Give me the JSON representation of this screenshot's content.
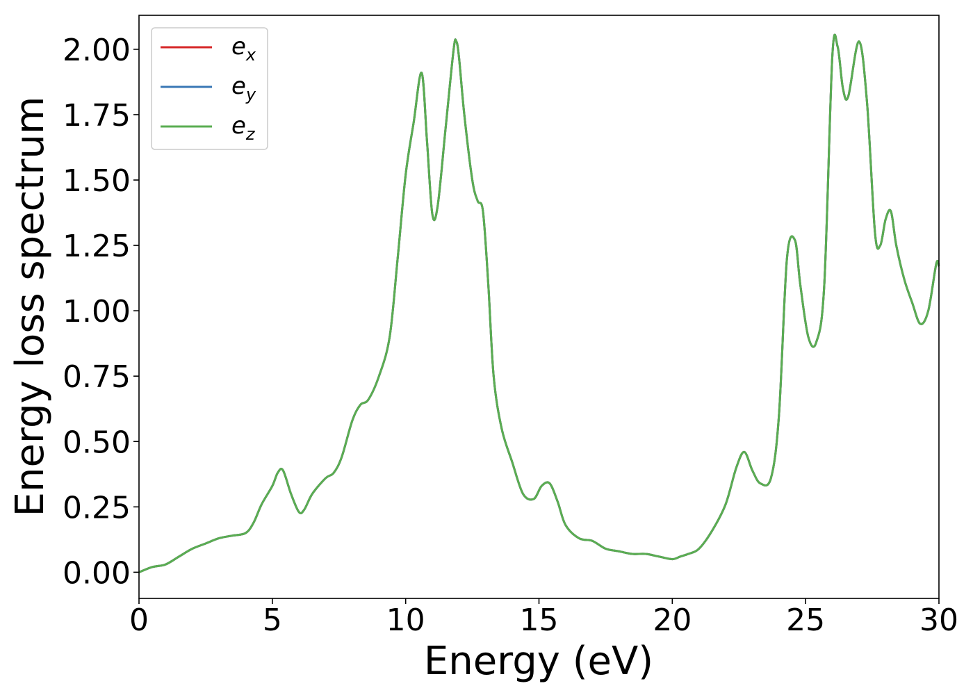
{
  "chart_data": {
    "type": "line",
    "title": "",
    "xlabel": "Energy (eV)",
    "ylabel": "Energy loss spectrum",
    "xlim": [
      0,
      30
    ],
    "ylim": [
      -0.1,
      2.13
    ],
    "xticks": [
      0,
      5,
      10,
      15,
      20,
      25,
      30
    ],
    "xtick_labels": [
      "0",
      "5",
      "10",
      "15",
      "20",
      "25",
      "30"
    ],
    "yticks": [
      0,
      0.25,
      0.5,
      0.75,
      1.0,
      1.25,
      1.5,
      1.75,
      2.0
    ],
    "ytick_labels": [
      "0.00",
      "0.25",
      "0.50",
      "0.75",
      "1.00",
      "1.25",
      "1.50",
      "1.75",
      "2.00"
    ],
    "grid": false,
    "legend_position": "top-left",
    "x": [
      0,
      0.5,
      1,
      1.5,
      2,
      2.5,
      3,
      3.5,
      4,
      4.3,
      4.6,
      5,
      5.2,
      5.4,
      5.7,
      6,
      6.2,
      6.5,
      7,
      7.3,
      7.6,
      8,
      8.3,
      8.6,
      9,
      9.4,
      9.7,
      10,
      10.3,
      10.6,
      10.8,
      11,
      11.2,
      11.5,
      11.8,
      11.9,
      12,
      12.2,
      12.5,
      12.7,
      12.9,
      13.1,
      13.3,
      13.6,
      14,
      14.4,
      14.8,
      15.1,
      15.4,
      15.7,
      16,
      16.5,
      17,
      17.5,
      18,
      18.5,
      19,
      19.5,
      20,
      20.3,
      20.6,
      21,
      21.5,
      22,
      22.4,
      22.7,
      23,
      23.3,
      23.7,
      24,
      24.3,
      24.6,
      24.8,
      25.1,
      25.4,
      25.7,
      26,
      26.2,
      26.4,
      26.6,
      27,
      27.3,
      27.6,
      27.8,
      28,
      28.2,
      28.4,
      28.7,
      29,
      29.3,
      29.6,
      29.9,
      30
    ],
    "series": [
      {
        "name": "e_x",
        "color": "#d62728",
        "values": [
          0.0,
          0.02,
          0.03,
          0.06,
          0.09,
          0.11,
          0.13,
          0.14,
          0.15,
          0.19,
          0.26,
          0.33,
          0.38,
          0.39,
          0.3,
          0.23,
          0.24,
          0.3,
          0.36,
          0.38,
          0.44,
          0.58,
          0.64,
          0.66,
          0.75,
          0.9,
          1.2,
          1.52,
          1.72,
          1.91,
          1.65,
          1.37,
          1.4,
          1.7,
          2.0,
          2.03,
          1.97,
          1.75,
          1.5,
          1.42,
          1.38,
          1.1,
          0.75,
          0.55,
          0.42,
          0.3,
          0.28,
          0.33,
          0.34,
          0.27,
          0.18,
          0.13,
          0.12,
          0.09,
          0.08,
          0.07,
          0.07,
          0.06,
          0.05,
          0.06,
          0.07,
          0.09,
          0.16,
          0.26,
          0.4,
          0.46,
          0.39,
          0.34,
          0.36,
          0.6,
          1.2,
          1.27,
          1.1,
          0.9,
          0.88,
          1.1,
          1.97,
          2.01,
          1.85,
          1.82,
          2.03,
          1.8,
          1.3,
          1.25,
          1.35,
          1.38,
          1.25,
          1.12,
          1.03,
          0.95,
          1.0,
          1.18,
          1.17
        ]
      },
      {
        "name": "e_y",
        "color": "#3a78b5",
        "values": [
          0.0,
          0.02,
          0.03,
          0.06,
          0.09,
          0.11,
          0.13,
          0.14,
          0.15,
          0.19,
          0.26,
          0.33,
          0.38,
          0.39,
          0.3,
          0.23,
          0.24,
          0.3,
          0.36,
          0.38,
          0.44,
          0.58,
          0.64,
          0.66,
          0.75,
          0.9,
          1.2,
          1.52,
          1.72,
          1.91,
          1.65,
          1.37,
          1.4,
          1.7,
          2.0,
          2.03,
          1.97,
          1.75,
          1.5,
          1.42,
          1.38,
          1.1,
          0.75,
          0.55,
          0.42,
          0.3,
          0.28,
          0.33,
          0.34,
          0.27,
          0.18,
          0.13,
          0.12,
          0.09,
          0.08,
          0.07,
          0.07,
          0.06,
          0.05,
          0.06,
          0.07,
          0.09,
          0.16,
          0.26,
          0.4,
          0.46,
          0.39,
          0.34,
          0.36,
          0.6,
          1.2,
          1.27,
          1.1,
          0.9,
          0.88,
          1.1,
          1.97,
          2.01,
          1.85,
          1.82,
          2.03,
          1.8,
          1.3,
          1.25,
          1.35,
          1.38,
          1.25,
          1.12,
          1.03,
          0.95,
          1.0,
          1.18,
          1.17
        ]
      },
      {
        "name": "e_z",
        "color": "#5aad52",
        "values": [
          0.0,
          0.02,
          0.03,
          0.06,
          0.09,
          0.11,
          0.13,
          0.14,
          0.15,
          0.19,
          0.26,
          0.33,
          0.38,
          0.39,
          0.3,
          0.23,
          0.24,
          0.3,
          0.36,
          0.38,
          0.44,
          0.58,
          0.64,
          0.66,
          0.75,
          0.9,
          1.2,
          1.52,
          1.72,
          1.91,
          1.65,
          1.37,
          1.4,
          1.7,
          2.0,
          2.03,
          1.97,
          1.75,
          1.5,
          1.42,
          1.38,
          1.1,
          0.75,
          0.55,
          0.42,
          0.3,
          0.28,
          0.33,
          0.34,
          0.27,
          0.18,
          0.13,
          0.12,
          0.09,
          0.08,
          0.07,
          0.07,
          0.06,
          0.05,
          0.06,
          0.07,
          0.09,
          0.16,
          0.26,
          0.4,
          0.46,
          0.39,
          0.34,
          0.36,
          0.6,
          1.2,
          1.27,
          1.1,
          0.9,
          0.88,
          1.1,
          1.97,
          2.01,
          1.85,
          1.82,
          2.03,
          1.8,
          1.3,
          1.25,
          1.35,
          1.38,
          1.25,
          1.12,
          1.03,
          0.95,
          1.0,
          1.18,
          1.17
        ]
      }
    ],
    "legend": [
      {
        "base": "e",
        "sub": "x",
        "color": "#d62728"
      },
      {
        "base": "e",
        "sub": "y",
        "color": "#3a78b5"
      },
      {
        "base": "e",
        "sub": "z",
        "color": "#5aad52"
      }
    ]
  }
}
